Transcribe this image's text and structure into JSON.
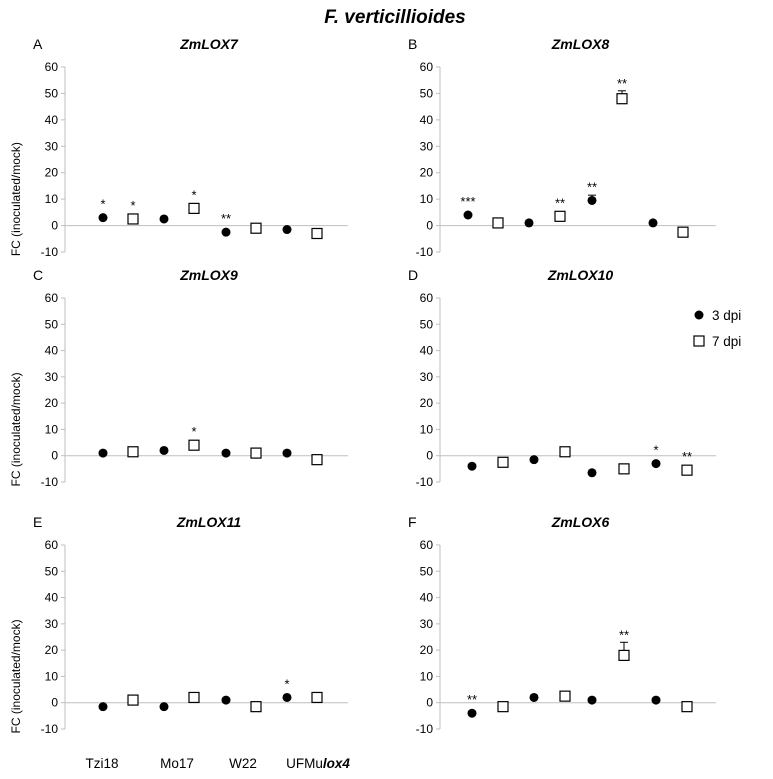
{
  "figure": {
    "title": "F. verticillioides",
    "x_categories": [
      {
        "text": "Tzi18",
        "italic": ""
      },
      {
        "text": "Mo17",
        "italic": ""
      },
      {
        "text": "W22",
        "italic": ""
      },
      {
        "text": "UFMu",
        "italic": "lox4"
      }
    ],
    "legend": [
      {
        "label": "3 dpi",
        "marker": "filled-circle"
      },
      {
        "label": "7 dpi",
        "marker": "open-square"
      }
    ],
    "colors": {
      "marker": "#000000",
      "axis": "#bfbfbf",
      "text": "#000000"
    }
  },
  "chart_data": [
    {
      "type": "scatter",
      "panel": "A",
      "title": "ZmLOX7",
      "ylabel": "FC (inoculated/mock)",
      "ylim": [
        -10,
        60
      ],
      "yticks": [
        -10,
        0,
        10,
        20,
        30,
        40,
        50,
        60
      ],
      "categories": [
        "Tzi18",
        "Mo17",
        "W22",
        "UFMulox4"
      ],
      "series": [
        {
          "name": "3 dpi",
          "values": [
            3,
            2.5,
            -2.5,
            -1.5
          ],
          "errors": [
            0,
            0,
            0,
            0
          ],
          "sig": [
            "*",
            "",
            "**",
            ""
          ]
        },
        {
          "name": "7 dpi",
          "values": [
            2.5,
            6.5,
            -1,
            -3
          ],
          "errors": [
            0,
            0,
            0,
            0
          ],
          "sig": [
            "*",
            "*",
            "",
            ""
          ]
        }
      ]
    },
    {
      "type": "scatter",
      "panel": "B",
      "title": "ZmLOX8",
      "ylabel": "",
      "ylim": [
        -10,
        60
      ],
      "yticks": [
        -10,
        0,
        10,
        20,
        30,
        40,
        50,
        60
      ],
      "categories": [
        "Tzi18",
        "Mo17",
        "W22",
        "UFMulox4"
      ],
      "series": [
        {
          "name": "3 dpi",
          "values": [
            4,
            1,
            9.5,
            1
          ],
          "errors": [
            0,
            0,
            2,
            0
          ],
          "sig": [
            "***",
            "",
            "**",
            ""
          ]
        },
        {
          "name": "7 dpi",
          "values": [
            1,
            3.5,
            48,
            -2.5
          ],
          "errors": [
            0,
            0,
            3,
            0
          ],
          "sig": [
            "",
            "**",
            "**",
            ""
          ]
        }
      ]
    },
    {
      "type": "scatter",
      "panel": "C",
      "title": "ZmLOX9",
      "ylabel": "FC (inoculated/mock)",
      "ylim": [
        -10,
        60
      ],
      "yticks": [
        -10,
        0,
        10,
        20,
        30,
        40,
        50,
        60
      ],
      "categories": [
        "Tzi18",
        "Mo17",
        "W22",
        "UFMulox4"
      ],
      "series": [
        {
          "name": "3 dpi",
          "values": [
            1,
            2,
            1,
            1
          ],
          "errors": [
            0,
            0,
            0,
            0
          ],
          "sig": [
            "",
            "",
            "",
            ""
          ]
        },
        {
          "name": "7 dpi",
          "values": [
            1.5,
            4,
            1,
            -1.5
          ],
          "errors": [
            0,
            0,
            0,
            0
          ],
          "sig": [
            "",
            "*",
            "",
            ""
          ]
        }
      ]
    },
    {
      "type": "scatter",
      "panel": "D",
      "title": "ZmLOX10",
      "ylabel": "",
      "ylim": [
        -10,
        60
      ],
      "yticks": [
        -10,
        0,
        10,
        20,
        30,
        40,
        50,
        60
      ],
      "categories": [
        "Tzi18",
        "Mo17",
        "W22",
        "UFMulox4"
      ],
      "series": [
        {
          "name": "3 dpi",
          "values": [
            -4,
            -1.5,
            -6.5,
            -3
          ],
          "errors": [
            0,
            0,
            0,
            0
          ],
          "sig": [
            "",
            "",
            "",
            "*"
          ]
        },
        {
          "name": "7 dpi",
          "values": [
            -2.5,
            1.5,
            -5,
            -5.5
          ],
          "errors": [
            0,
            0,
            0,
            0
          ],
          "sig": [
            "",
            "",
            "",
            "**"
          ]
        }
      ]
    },
    {
      "type": "scatter",
      "panel": "E",
      "title": "ZmLOX11",
      "ylabel": "FC (inoculated/mock)",
      "ylim": [
        -10,
        60
      ],
      "yticks": [
        -10,
        0,
        10,
        20,
        30,
        40,
        50,
        60
      ],
      "categories": [
        "Tzi18",
        "Mo17",
        "W22",
        "UFMulox4"
      ],
      "series": [
        {
          "name": "3 dpi",
          "values": [
            -1.5,
            -1.5,
            1,
            2
          ],
          "errors": [
            0,
            0,
            0,
            0
          ],
          "sig": [
            "",
            "",
            "",
            "*"
          ]
        },
        {
          "name": "7 dpi",
          "values": [
            1,
            2,
            -1.5,
            2
          ],
          "errors": [
            0,
            0,
            0,
            0
          ],
          "sig": [
            "",
            "",
            "",
            ""
          ]
        }
      ]
    },
    {
      "type": "scatter",
      "panel": "F",
      "title": "ZmLOX6",
      "ylabel": "",
      "ylim": [
        -10,
        60
      ],
      "yticks": [
        -10,
        0,
        10,
        20,
        30,
        40,
        50,
        60
      ],
      "categories": [
        "Tzi18",
        "Mo17",
        "W22",
        "UFMulox4"
      ],
      "series": [
        {
          "name": "3 dpi",
          "values": [
            -4,
            2,
            1,
            1
          ],
          "errors": [
            0,
            0,
            0,
            0
          ],
          "sig": [
            "**",
            "",
            "",
            ""
          ]
        },
        {
          "name": "7 dpi",
          "values": [
            -1.5,
            2.5,
            18,
            -1.5
          ],
          "errors": [
            0,
            0,
            5,
            0
          ],
          "sig": [
            "",
            "",
            "**",
            ""
          ]
        }
      ]
    }
  ]
}
